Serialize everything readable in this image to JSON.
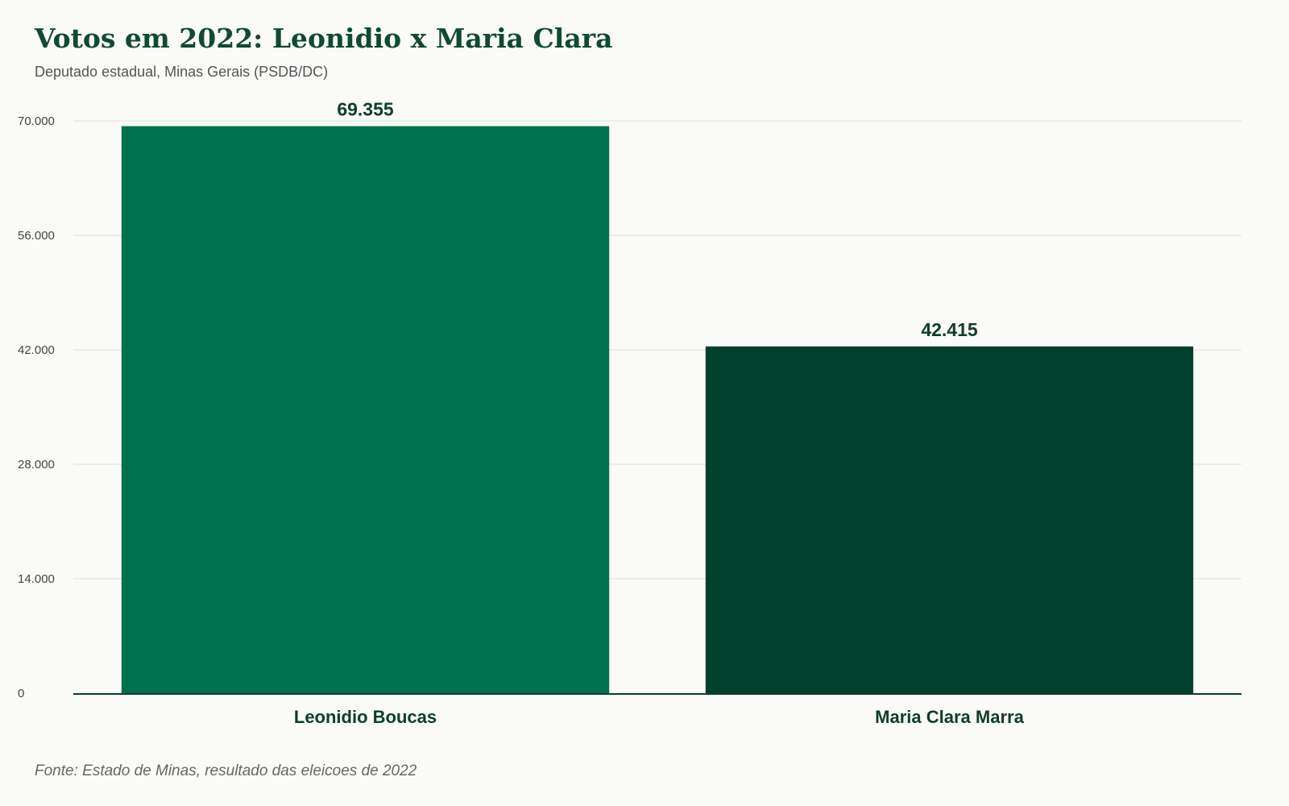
{
  "title": "Votos em 2022: Leonidio x Maria Clara",
  "subtitle": "Deputado estadual, Minas Gerais (PSDB/DC)",
  "source": "Fonte: Estado de Minas, resultado das eleicoes de 2022",
  "chart_data": {
    "type": "bar",
    "title": "Votos em 2022: Leonidio x Maria Clara",
    "subtitle": "Deputado estadual, Minas Gerais (PSDB/DC)",
    "categories": [
      "Leonidio Boucas",
      "Maria Clara Marra"
    ],
    "values": [
      69355,
      42415
    ],
    "value_labels": [
      "69.355",
      "42.415"
    ],
    "bar_colors": [
      "#00704d",
      "#00402d"
    ],
    "ylim": [
      0,
      70000
    ],
    "yticks": [
      0,
      14000,
      28000,
      42000,
      56000,
      70000
    ],
    "ytick_labels": [
      "0",
      "14.000",
      "28.000",
      "42.000",
      "56.000",
      "70.000"
    ],
    "xlabel": "",
    "ylabel": "",
    "grid": true,
    "legend": "none"
  }
}
